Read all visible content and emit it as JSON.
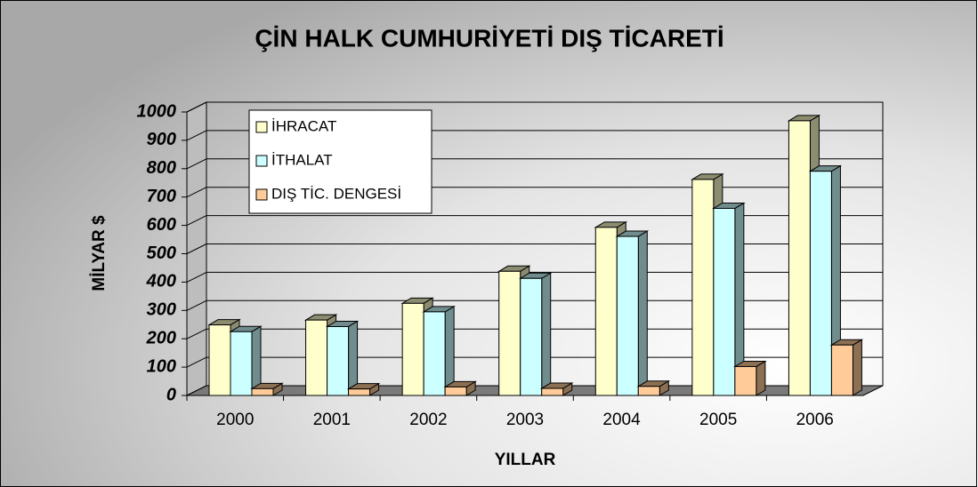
{
  "chart_data": {
    "type": "bar3d",
    "title": "ÇİN HALK CUMHURİYETİ DIŞ TİCARETİ",
    "y_label": "MİLYAR $",
    "x_label": "YILLAR",
    "categories": [
      "2000",
      "2001",
      "2002",
      "2003",
      "2004",
      "2005",
      "2006"
    ],
    "series": [
      {
        "name": "İHRACAT",
        "color": "#ffffcc",
        "values": [
          249,
          266,
          325,
          438,
          593,
          762,
          969
        ]
      },
      {
        "name": "İTHALAT",
        "color": "#ccffff",
        "values": [
          225,
          243,
          295,
          413,
          561,
          660,
          791
        ]
      },
      {
        "name": "DIŞ TİC. DENGESİ",
        "color": "#ffcc99",
        "values": [
          24,
          23,
          30,
          25,
          32,
          102,
          178
        ]
      }
    ],
    "ylim": [
      0,
      1000
    ],
    "yticks": [
      0,
      100,
      200,
      300,
      400,
      500,
      600,
      700,
      800,
      900,
      1000
    ],
    "grid": true,
    "legend": "top-left"
  }
}
